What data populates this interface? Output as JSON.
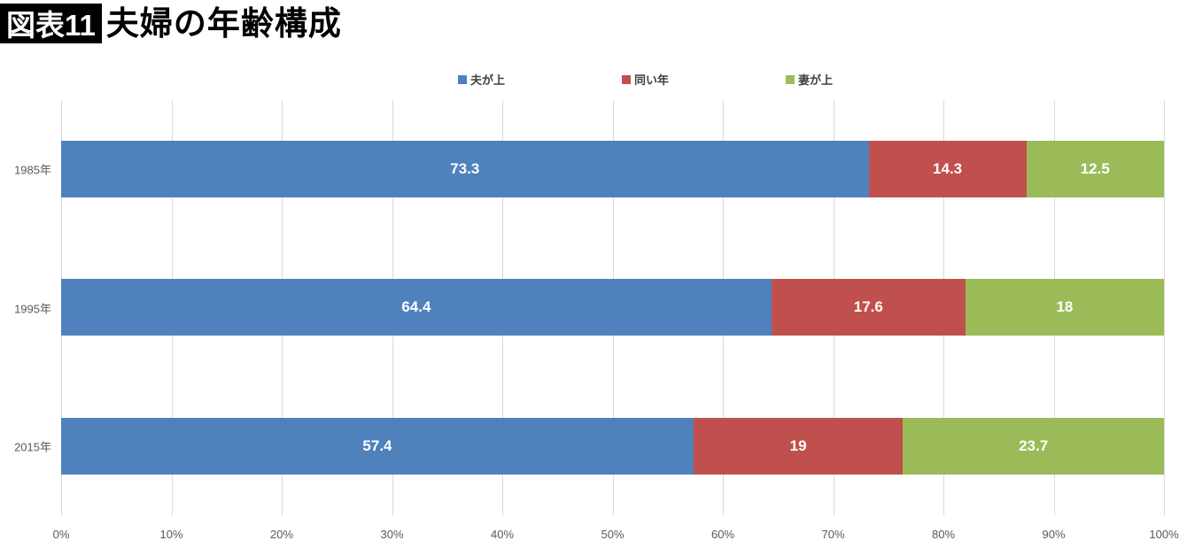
{
  "header": {
    "badge": "図表11",
    "title": "夫婦の年齢構成"
  },
  "colors": {
    "series_husband_older": "#4F81BD",
    "series_same_age": "#C0504D",
    "series_wife_older": "#9BBB59",
    "gridline": "#D9D9D9",
    "axis_text": "#595959",
    "legend_text": "#404040",
    "bar_label_text": "#FFFFFF",
    "badge_bg": "#000000",
    "badge_text": "#FFFFFF"
  },
  "chart_data": {
    "type": "bar",
    "subtype": "horizontal-stacked-100-percent",
    "title": "夫婦の年齢構成",
    "categories": [
      "1985年",
      "1995年",
      "2015年"
    ],
    "series": [
      {
        "name": "夫が上",
        "color": "#4F81BD",
        "values": [
          73.3,
          64.4,
          57.4
        ],
        "labels": [
          "73.3",
          "64.4",
          "57.4"
        ]
      },
      {
        "name": "同い年",
        "color": "#C0504D",
        "values": [
          14.3,
          17.6,
          19
        ],
        "labels": [
          "14.3",
          "17.6",
          "19"
        ]
      },
      {
        "name": "妻が上",
        "color": "#9BBB59",
        "values": [
          12.5,
          18,
          23.7
        ],
        "labels": [
          "12.5",
          "18",
          "23.7"
        ]
      }
    ],
    "x_ticks": [
      "0%",
      "10%",
      "20%",
      "30%",
      "40%",
      "50%",
      "60%",
      "70%",
      "80%",
      "90%",
      "100%"
    ],
    "xlim": [
      0,
      100
    ],
    "xlabel": "",
    "ylabel": "",
    "legend_position": "top",
    "grid": "vertical-only"
  }
}
